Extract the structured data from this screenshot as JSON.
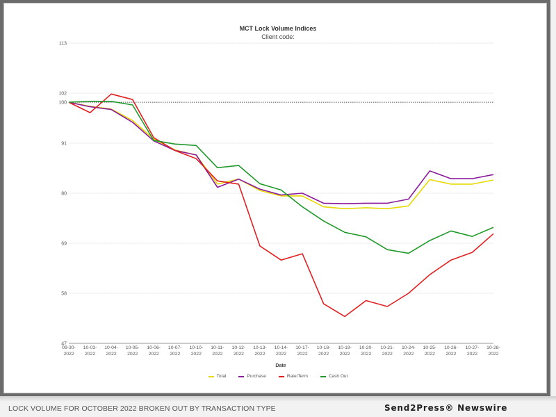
{
  "chart_data": {
    "type": "line",
    "title": "MCT Lock Volume Indices",
    "subtitle": "Client code:",
    "xlabel": "Date",
    "ylabel": "",
    "ylim": [
      47,
      113
    ],
    "yticks": [
      "113",
      "102",
      "100",
      "91",
      "80",
      "69",
      "58",
      "47"
    ],
    "ytick_values": [
      113,
      102,
      100,
      91,
      80,
      69,
      58,
      47
    ],
    "reference_line": 100,
    "grid": true,
    "legend_position": "bottom",
    "categories": [
      "09-30-2022",
      "10-03-2022",
      "10-04-2022",
      "10-05-2022",
      "10-06-2022",
      "10-07-2022",
      "10-10-2022",
      "10-11-2022",
      "10-12-2022",
      "10-13-2022",
      "10-14-2022",
      "10-17-2022",
      "10-18-2022",
      "10-19-2022",
      "10-20-2022",
      "10-21-2022",
      "10-24-2022",
      "10-25-2022",
      "10-26-2022",
      "10-27-2022",
      "10-28-2022"
    ],
    "category_lines": [
      [
        "09-30-",
        "2022"
      ],
      [
        "10-03-",
        "2022"
      ],
      [
        "10-04-",
        "2022"
      ],
      [
        "10-05-",
        "2022"
      ],
      [
        "10-06-",
        "2022"
      ],
      [
        "10-07-",
        "2022"
      ],
      [
        "10-10-",
        "2022"
      ],
      [
        "10-11-",
        "2022"
      ],
      [
        "10-12-",
        "2022"
      ],
      [
        "10-13-",
        "2022"
      ],
      [
        "10-14-",
        "2022"
      ],
      [
        "10-17-",
        "2022"
      ],
      [
        "10-18-",
        "2022"
      ],
      [
        "10-19-",
        "2022"
      ],
      [
        "10-20-",
        "2022"
      ],
      [
        "10-21-",
        "2022"
      ],
      [
        "10-24-",
        "2022"
      ],
      [
        "10-25-",
        "2022"
      ],
      [
        "10-26-",
        "2022"
      ],
      [
        "10-27-",
        "2022"
      ],
      [
        "10-28-",
        "2022"
      ]
    ],
    "series": [
      {
        "name": "Total",
        "color": "#e6d800",
        "values": [
          100,
          99.1,
          98.5,
          96,
          91.9,
          89.5,
          88.4,
          82,
          83.1,
          80.6,
          79.4,
          79.4,
          77,
          76.6,
          76.8,
          76.6,
          77.2,
          83,
          82,
          82,
          82.9
        ]
      },
      {
        "name": "Purchase",
        "color": "#8b1a9c",
        "values": [
          100,
          99,
          98.4,
          95.6,
          91.5,
          89.4,
          88.4,
          81.3,
          83.1,
          80.9,
          79.6,
          80,
          77.8,
          77.7,
          77.8,
          77.8,
          78.7,
          84.9,
          83.2,
          83.2,
          84.1
        ]
      },
      {
        "name": "Rate/Term",
        "color": "#e02020",
        "values": [
          100,
          97.7,
          101.8,
          100.6,
          92.2,
          89.4,
          87.6,
          82.7,
          82,
          68.4,
          65.3,
          66.7,
          55.7,
          52.9,
          56.4,
          55.1,
          58,
          62.1,
          65.3,
          67,
          71.1
        ]
      },
      {
        "name": "Cash Out",
        "color": "#1f9a2a",
        "values": [
          100,
          100.2,
          100.2,
          99.4,
          91.6,
          90.8,
          90.5,
          85.6,
          86.1,
          82.1,
          80.7,
          77,
          73.9,
          71.4,
          70.4,
          67.6,
          66.8,
          69.6,
          71.7,
          70.5,
          72.5
        ]
      }
    ]
  },
  "caption": "LOCK VOLUME FOR OCTOBER 2022 BROKEN OUT BY TRANSACTION TYPE",
  "brand": "Send2Press® Newswire"
}
